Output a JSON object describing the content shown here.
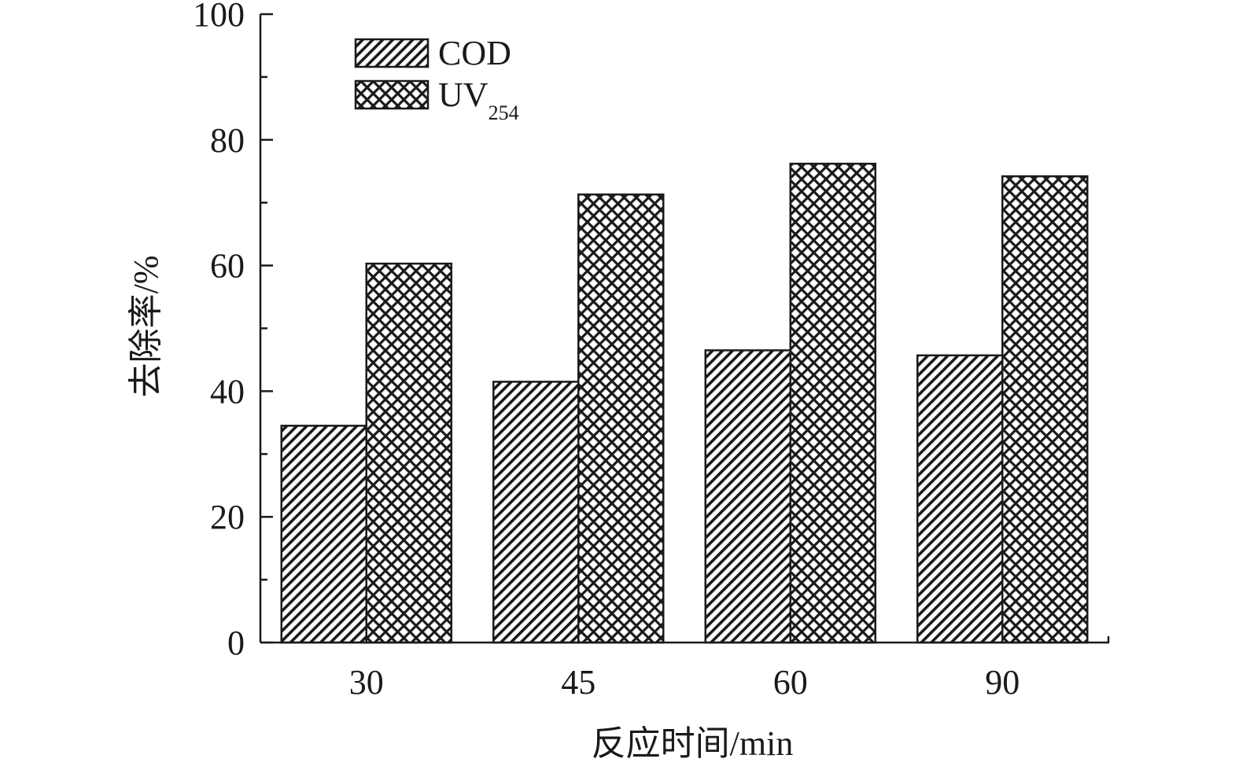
{
  "chart_data": {
    "type": "bar",
    "categories": [
      "30",
      "45",
      "60",
      "90"
    ],
    "series": [
      {
        "name": "COD",
        "values": [
          34.5,
          41.5,
          46.5,
          45.7
        ],
        "pattern": "diagonal-hatch"
      },
      {
        "name": "UV",
        "name_subscript": "254",
        "values": [
          60.3,
          71.3,
          76.2,
          74.2
        ],
        "pattern": "cross-hatch"
      }
    ],
    "xlabel": "反应时间/min",
    "ylabel": "去除率/%",
    "ylim": [
      0,
      100
    ],
    "yticks": [
      "0",
      "20",
      "40",
      "60",
      "80",
      "100"
    ],
    "grid": false,
    "legend_position": "top-left",
    "colors": {
      "ink": "#1a1a1a",
      "fill": "#ffffff"
    }
  }
}
